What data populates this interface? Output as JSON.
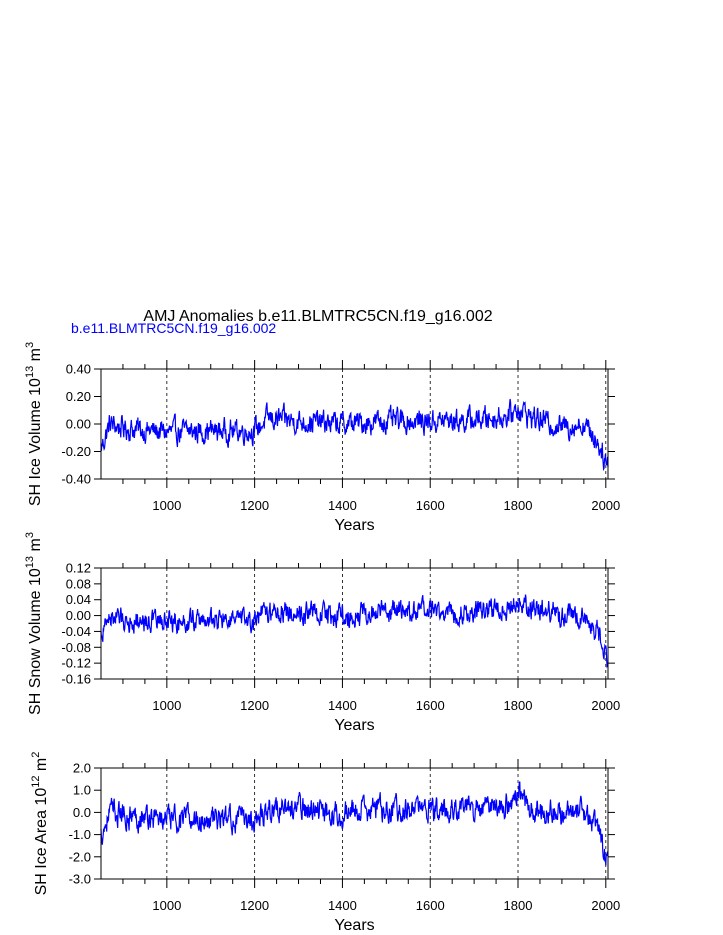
{
  "title": "AMJ Anomalies b.e11.BLMTRC5CN.f19_g16.002",
  "legend_label": "b.e11.BLMTRC5CN.f19_g16.002",
  "colors": {
    "series": "#0000ff",
    "axes": "#000000",
    "title": "#000000"
  },
  "chart_data": [
    {
      "type": "line",
      "ylabel": "SH Ice Volume 10^13 m^3",
      "ylabel_parts": {
        "prefix": "SH Ice Volume 10",
        "exp1": "13",
        "mid": " m",
        "exp2": "3"
      },
      "xlabel": "Years",
      "xlim": [
        850,
        2005
      ],
      "ylim": [
        -0.4,
        0.4
      ],
      "xticks": [
        1000,
        1200,
        1400,
        1600,
        1800,
        2000
      ],
      "yticks": [
        -0.4,
        -0.2,
        0.0,
        0.2,
        0.4
      ],
      "ytick_labels": [
        "-0.40",
        "-0.20",
        "0.00",
        "0.20",
        "0.40"
      ],
      "vlines": [
        1000,
        1200,
        1400,
        1600,
        1800,
        2000
      ],
      "grid": false,
      "series": [
        {
          "values_note": "annual anomalies 850-2005, approximated",
          "x_start": 850,
          "x_end": 2005,
          "trend_points": [
            [
              850,
              -0.18
            ],
            [
              870,
              0.0
            ],
            [
              900,
              -0.03
            ],
            [
              1000,
              -0.06
            ],
            [
              1100,
              -0.05
            ],
            [
              1200,
              -0.05
            ],
            [
              1230,
              0.04
            ],
            [
              1300,
              0.02
            ],
            [
              1400,
              0.0
            ],
            [
              1500,
              0.02
            ],
            [
              1600,
              0.02
            ],
            [
              1700,
              0.03
            ],
            [
              1780,
              0.06
            ],
            [
              1800,
              0.12
            ],
            [
              1830,
              0.05
            ],
            [
              1900,
              -0.02
            ],
            [
              1950,
              0.0
            ],
            [
              1980,
              -0.12
            ],
            [
              2005,
              -0.3
            ]
          ],
          "noise_amplitude": 0.09
        }
      ]
    },
    {
      "type": "line",
      "ylabel": "SH Snow Volume 10^13 m^3",
      "ylabel_parts": {
        "prefix": "SH Snow Volume 10",
        "exp1": "13",
        "mid": " m",
        "exp2": "3"
      },
      "xlabel": "Years",
      "xlim": [
        850,
        2005
      ],
      "ylim": [
        -0.16,
        0.12
      ],
      "xticks": [
        1000,
        1200,
        1400,
        1600,
        1800,
        2000
      ],
      "yticks": [
        -0.16,
        -0.12,
        -0.08,
        -0.04,
        0.0,
        0.04,
        0.08,
        0.12
      ],
      "ytick_labels": [
        "-0.16",
        "-0.12",
        "-0.08",
        "-0.04",
        "0.00",
        "0.04",
        "0.08",
        "0.12"
      ],
      "vlines": [
        1000,
        1200,
        1400,
        1600,
        1800,
        2000
      ],
      "grid": false,
      "series": [
        {
          "values_note": "annual anomalies 850-2005, approximated",
          "x_start": 850,
          "x_end": 2005,
          "trend_points": [
            [
              850,
              -0.05
            ],
            [
              870,
              0.0
            ],
            [
              900,
              -0.01
            ],
            [
              1000,
              -0.015
            ],
            [
              1100,
              -0.01
            ],
            [
              1200,
              -0.015
            ],
            [
              1230,
              0.01
            ],
            [
              1300,
              0.01
            ],
            [
              1400,
              0.0
            ],
            [
              1500,
              0.01
            ],
            [
              1600,
              0.01
            ],
            [
              1700,
              0.01
            ],
            [
              1780,
              0.02
            ],
            [
              1800,
              0.04
            ],
            [
              1830,
              0.02
            ],
            [
              1900,
              0.0
            ],
            [
              1950,
              0.0
            ],
            [
              1980,
              -0.04
            ],
            [
              2005,
              -0.11
            ]
          ],
          "noise_amplitude": 0.03
        }
      ]
    },
    {
      "type": "line",
      "ylabel": "SH Ice Area 10^12 m^2",
      "ylabel_parts": {
        "prefix": "SH Ice Area 10",
        "exp1": "12",
        "mid": " m",
        "exp2": "2"
      },
      "xlabel": "Years",
      "xlim": [
        850,
        2005
      ],
      "ylim": [
        -3.0,
        2.0
      ],
      "xticks": [
        1000,
        1200,
        1400,
        1600,
        1800,
        2000
      ],
      "yticks": [
        -3.0,
        -2.0,
        -1.0,
        0.0,
        1.0,
        2.0
      ],
      "ytick_labels": [
        "-3.0",
        "-2.0",
        "-1.0",
        "0.0",
        "1.0",
        "2.0"
      ],
      "vlines": [
        1000,
        1200,
        1400,
        1600,
        1800,
        2000
      ],
      "grid": false,
      "series": [
        {
          "values_note": "annual anomalies 850-2005, approximated",
          "x_start": 850,
          "x_end": 2005,
          "trend_points": [
            [
              850,
              -1.0
            ],
            [
              870,
              0.0
            ],
            [
              900,
              -0.1
            ],
            [
              1000,
              -0.3
            ],
            [
              1100,
              -0.3
            ],
            [
              1200,
              -0.3
            ],
            [
              1230,
              0.2
            ],
            [
              1300,
              0.2
            ],
            [
              1400,
              0.0
            ],
            [
              1500,
              0.2
            ],
            [
              1600,
              0.1
            ],
            [
              1700,
              0.2
            ],
            [
              1780,
              0.4
            ],
            [
              1800,
              0.8
            ],
            [
              1830,
              0.3
            ],
            [
              1900,
              -0.1
            ],
            [
              1950,
              0.0
            ],
            [
              1980,
              -0.8
            ],
            [
              2005,
              -2.3
            ]
          ],
          "noise_amplitude": 0.6
        }
      ]
    }
  ]
}
